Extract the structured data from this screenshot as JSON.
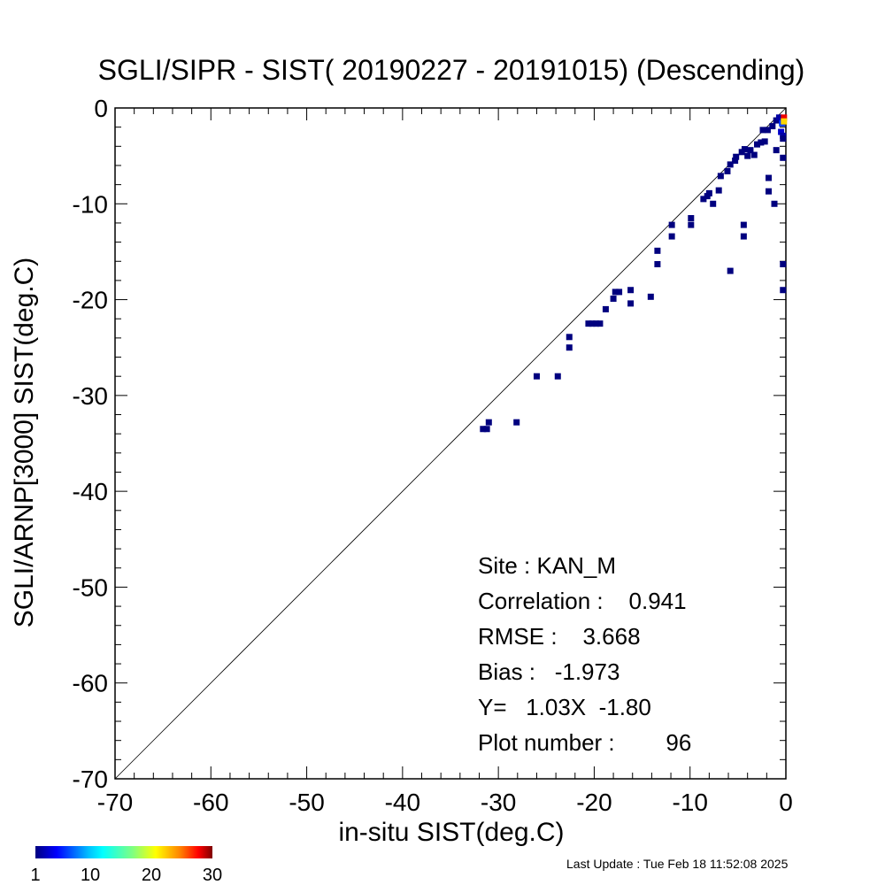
{
  "chart_data": {
    "type": "scatter",
    "title": "SGLI/SIPR - SIST( 20190227 - 20191015) (Descending)",
    "xlabel": "in-situ SIST(deg.C)",
    "ylabel": "SGLI/ARNP[3000]     SIST(deg.C)",
    "xlim": [
      -70,
      0
    ],
    "ylim": [
      -70,
      0
    ],
    "xticks": [
      "-70",
      "-60",
      "-50",
      "-40",
      "-30",
      "-20",
      "-10",
      "0"
    ],
    "yticks": [
      "-70",
      "-60",
      "-50",
      "-40",
      "-30",
      "-20",
      "-10",
      "0"
    ],
    "grid": false,
    "reference_line": "1:1",
    "colorbar": {
      "ticks": [
        "1",
        "10",
        "20",
        "30"
      ],
      "min": 1,
      "max": 30,
      "colors": [
        "#00007f",
        "#0000ff",
        "#00bfff",
        "#00ffff",
        "#80ff80",
        "#ffff00",
        "#ff8000",
        "#ff0000",
        "#7f0000"
      ]
    },
    "points": [
      [
        -31.6,
        -33.5,
        1
      ],
      [
        -31.2,
        -33.5,
        1
      ],
      [
        -31.0,
        -32.8,
        1
      ],
      [
        -28.1,
        -32.8,
        1
      ],
      [
        -26.0,
        -28.0,
        1
      ],
      [
        -23.8,
        -28.0,
        1
      ],
      [
        -22.6,
        -25.0,
        1
      ],
      [
        -22.6,
        -23.9,
        1
      ],
      [
        -20.6,
        -22.5,
        1
      ],
      [
        -20.2,
        -22.5,
        1
      ],
      [
        -19.8,
        -22.5,
        1
      ],
      [
        -19.4,
        -22.5,
        1
      ],
      [
        -18.8,
        -21.0,
        1
      ],
      [
        -18.0,
        -19.9,
        1
      ],
      [
        -17.8,
        -19.2,
        1
      ],
      [
        -17.4,
        -19.2,
        1
      ],
      [
        -16.2,
        -19.0,
        1
      ],
      [
        -16.2,
        -20.4,
        1
      ],
      [
        -14.1,
        -19.7,
        1
      ],
      [
        -13.4,
        -16.3,
        1
      ],
      [
        -13.4,
        -14.9,
        1
      ],
      [
        -11.9,
        -13.4,
        1
      ],
      [
        -11.9,
        -12.2,
        1
      ],
      [
        -9.9,
        -11.5,
        1
      ],
      [
        -9.9,
        -12.2,
        1
      ],
      [
        -8.6,
        -9.5,
        1
      ],
      [
        -8.2,
        -9.2,
        1
      ],
      [
        -8.0,
        -8.9,
        1
      ],
      [
        -7.6,
        -10.0,
        1
      ],
      [
        -7.0,
        -8.6,
        1
      ],
      [
        -6.8,
        -7.1,
        1
      ],
      [
        -6.1,
        -6.6,
        1
      ],
      [
        -5.8,
        -17.0,
        1
      ],
      [
        -5.8,
        -5.9,
        1
      ],
      [
        -5.3,
        -5.5,
        1
      ],
      [
        -5.2,
        -5.1,
        1
      ],
      [
        -4.6,
        -4.6,
        1
      ],
      [
        -4.4,
        -13.4,
        1
      ],
      [
        -4.4,
        -12.2,
        1
      ],
      [
        -4.3,
        -4.3,
        1
      ],
      [
        -4.0,
        -5.0,
        1
      ],
      [
        -3.7,
        -4.4,
        1
      ],
      [
        -3.3,
        -4.9,
        1
      ],
      [
        -3.0,
        -3.8,
        1
      ],
      [
        -2.6,
        -3.6,
        1
      ],
      [
        -2.2,
        -3.5,
        1
      ],
      [
        -2.4,
        -2.3,
        1
      ],
      [
        -1.9,
        -2.3,
        1
      ],
      [
        -1.8,
        -7.3,
        1
      ],
      [
        -1.8,
        -8.7,
        1
      ],
      [
        -1.4,
        -1.9,
        1
      ],
      [
        -1.2,
        -10.0,
        1
      ],
      [
        -1.0,
        -1.3,
        1
      ],
      [
        -1.0,
        -4.4,
        1
      ],
      [
        -0.7,
        -1.0,
        2
      ],
      [
        -0.5,
        -2.5,
        3
      ],
      [
        -0.3,
        -2.9,
        2
      ],
      [
        -0.3,
        -3.2,
        1
      ],
      [
        -0.3,
        -5.2,
        1
      ],
      [
        -0.3,
        -16.3,
        1
      ],
      [
        -0.3,
        -19.0,
        1
      ],
      [
        -0.4,
        -1.6,
        6
      ],
      [
        -0.2,
        -1.0,
        28
      ],
      [
        -0.2,
        -1.4,
        22
      ]
    ],
    "annotations": {
      "site": "Site : KAN_M",
      "correlation": "Correlation :    0.941",
      "rmse": "RMSE :    3.668",
      "bias": "Bias :   -1.973",
      "equation": "Y=   1.03X  -1.80",
      "plot_number": "Plot number :        96"
    }
  },
  "footer": {
    "last_update": "Last Update : Tue Feb 18 11:52:08 2025"
  }
}
